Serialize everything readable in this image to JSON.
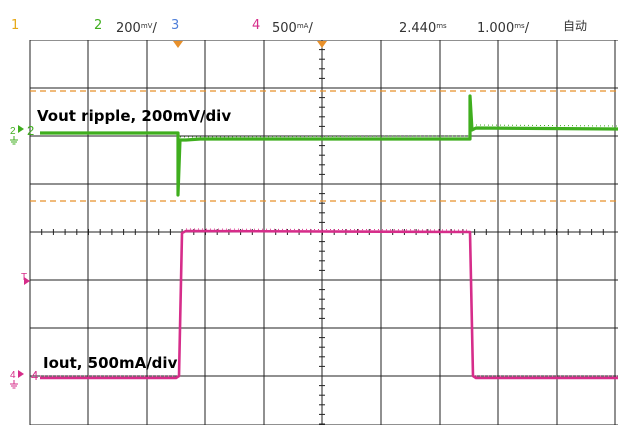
{
  "status": {
    "ch1_number": "1",
    "ch2_number": "2",
    "ch2_scale": "200",
    "ch2_scale_unit": "mV",
    "ch2_suffix": "/",
    "ch3_number": "3",
    "ch4_number": "4",
    "ch4_scale": "500",
    "ch4_scale_unit": "mA",
    "ch4_suffix": "/",
    "trigger_position": "2.440",
    "trigger_position_unit": "ms",
    "timebase": "1.000",
    "timebase_unit": "ms",
    "timebase_suffix": "/",
    "acquire_mode": "自动"
  },
  "annotations": {
    "vout": "Vout ripple, 200mV/div",
    "iout": "Iout, 500mA/div"
  },
  "markers": {
    "ch2_marker": "2",
    "ch4_marker": "4",
    "trigger_marker": "T"
  },
  "colors": {
    "ch1": "#e6a817",
    "ch2": "#3fae1e",
    "ch3": "#4f7fd9",
    "ch4": "#d62d8a",
    "grid": "#222222",
    "cursor": "#e8902a"
  },
  "icons": {
    "ch2_ground": "ground-icon",
    "ch4_ground": "ground-icon",
    "trigger_arrow": "arrow-right-icon",
    "time_trigger": "triangle-down-icon"
  }
}
